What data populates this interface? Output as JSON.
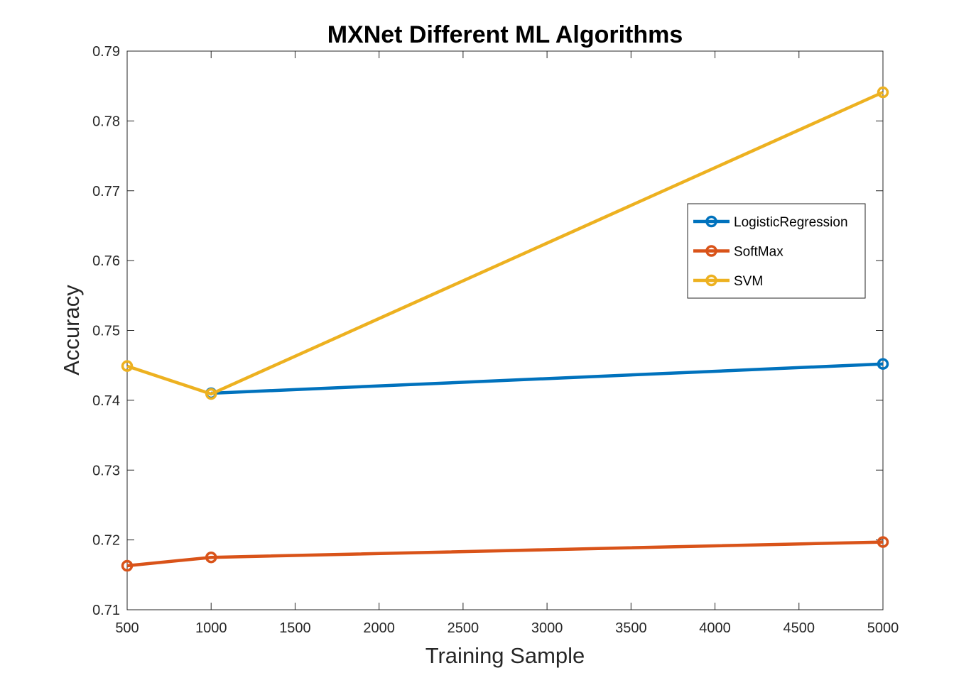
{
  "chart_data": {
    "type": "line",
    "title": "MXNet Different ML Algorithms",
    "xlabel": "Training Sample",
    "ylabel": "Accuracy",
    "xlim": [
      500,
      5000
    ],
    "ylim": [
      0.71,
      0.79
    ],
    "xticks": [
      500,
      1000,
      1500,
      2000,
      2500,
      3000,
      3500,
      4000,
      4500,
      5000
    ],
    "xtick_labels": [
      "500",
      "1000",
      "1500",
      "2000",
      "2500",
      "3000",
      "3500",
      "4000",
      "4500",
      "5000"
    ],
    "yticks": [
      0.71,
      0.72,
      0.73,
      0.74,
      0.75,
      0.76,
      0.77,
      0.78,
      0.79
    ],
    "ytick_labels": [
      "0.71",
      "0.72",
      "0.73",
      "0.74",
      "0.75",
      "0.76",
      "0.77",
      "0.78",
      "0.79"
    ],
    "grid": false,
    "legend_position": "right",
    "series": [
      {
        "name": "LogisticRegression",
        "color": "#0072BD",
        "marker": "circle",
        "x": [
          1000,
          5000
        ],
        "y": [
          0.741,
          0.7452
        ]
      },
      {
        "name": "SoftMax",
        "color": "#D95319",
        "marker": "circle",
        "x": [
          500,
          1000,
          5000
        ],
        "y": [
          0.7163,
          0.7175,
          0.7197
        ]
      },
      {
        "name": "SVM",
        "color": "#EDB120",
        "marker": "circle",
        "x": [
          500,
          1000,
          5000
        ],
        "y": [
          0.7449,
          0.7409,
          0.7841
        ]
      }
    ]
  }
}
